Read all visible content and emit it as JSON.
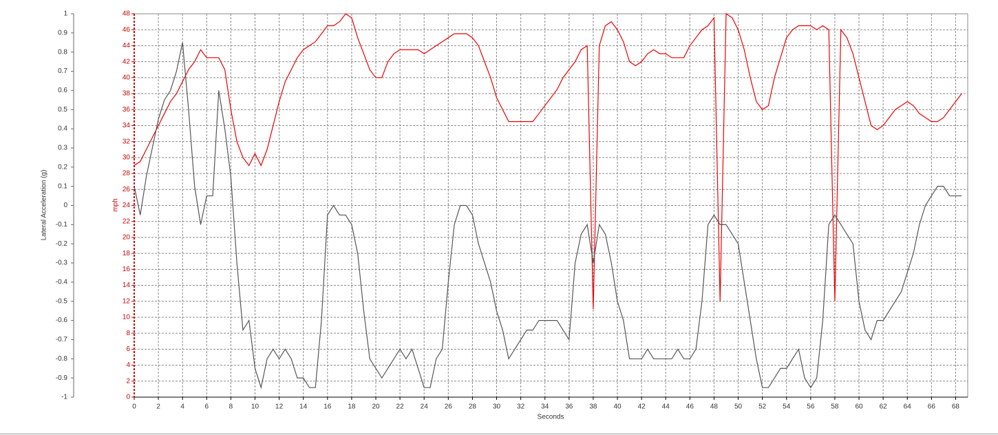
{
  "chart_data": {
    "type": "line",
    "xlabel": "Seconds",
    "ylabel": "mph",
    "y2label": "Lateral Acceleration (g)",
    "grid": true,
    "xlim": [
      0,
      69
    ],
    "xticks": [
      0,
      2,
      4,
      6,
      8,
      10,
      12,
      14,
      16,
      18,
      20,
      22,
      24,
      26,
      28,
      30,
      32,
      34,
      36,
      38,
      40,
      42,
      44,
      46,
      48,
      50,
      52,
      54,
      56,
      58,
      60,
      62,
      64,
      66,
      68
    ],
    "ylim": [
      0,
      48
    ],
    "yticks": [
      0,
      2,
      4,
      6,
      8,
      10,
      12,
      14,
      16,
      18,
      20,
      22,
      24,
      26,
      28,
      30,
      32,
      34,
      36,
      38,
      40,
      42,
      44,
      46,
      48
    ],
    "y2lim": [
      -1,
      1
    ],
    "y2ticks": [
      -1,
      -0.9,
      -0.8,
      -0.7,
      -0.6,
      -0.5,
      -0.4,
      -0.3,
      -0.2,
      -0.1,
      0,
      0.1,
      0.2,
      0.3,
      0.4,
      0.5,
      0.6,
      0.7,
      0.8,
      0.9,
      1
    ],
    "x": [
      0,
      0.5,
      1,
      1.5,
      2,
      2.5,
      3,
      3.5,
      4,
      4.5,
      5,
      5.5,
      6,
      6.5,
      7,
      7.5,
      8,
      8.5,
      9,
      9.5,
      10,
      10.5,
      11,
      11.5,
      12,
      12.5,
      13,
      13.5,
      14,
      14.5,
      15,
      15.5,
      16,
      16.5,
      17,
      17.5,
      18,
      18.5,
      19,
      19.5,
      20,
      20.5,
      21,
      21.5,
      22,
      22.5,
      23,
      23.5,
      24,
      24.5,
      25,
      25.5,
      26,
      26.5,
      27,
      27.5,
      28,
      28.5,
      29,
      29.5,
      30,
      30.5,
      31,
      31.5,
      32,
      32.5,
      33,
      33.5,
      34,
      34.5,
      35,
      35.5,
      36,
      36.5,
      37,
      37.5,
      38,
      38.5,
      39,
      39.5,
      40,
      40.5,
      41,
      41.5,
      42,
      42.5,
      43,
      43.5,
      44,
      44.5,
      45,
      45.5,
      46,
      46.5,
      47,
      47.5,
      48,
      48.5,
      49,
      49.5,
      50,
      50.5,
      51,
      51.5,
      52,
      52.5,
      53,
      53.5,
      54,
      54.5,
      55,
      55.5,
      56,
      56.5,
      57,
      57.5,
      58,
      58.5,
      59,
      59.5,
      60,
      60.5,
      61,
      61.5,
      62,
      62.5,
      63,
      63.5,
      64,
      64.5,
      65,
      65.5,
      66,
      66.5,
      67,
      67.5,
      68,
      68.5
    ],
    "series": [
      {
        "color": "#ee0000",
        "values": [
          29,
          29.5,
          31,
          32.5,
          34,
          35.5,
          37,
          38,
          39.5,
          41,
          42,
          43.5,
          42.5,
          42.5,
          42.5,
          41,
          36,
          32,
          30,
          29,
          30.5,
          29,
          31,
          34,
          37,
          39.5,
          41,
          42.5,
          43.5,
          44,
          44.5,
          45.5,
          46.5,
          46.5,
          47,
          48,
          47.5,
          45,
          43,
          41,
          40,
          40,
          42,
          43,
          43.5,
          43.5,
          43.5,
          43.5,
          43,
          43.5,
          44,
          44.5,
          45,
          45.5,
          45.5,
          45.5,
          45,
          44,
          42,
          40,
          37.5,
          36,
          34.5,
          34.5,
          34.5,
          34.5,
          34.5,
          35.5,
          36.5,
          37.5,
          38.5,
          40,
          41,
          42,
          43.5,
          44,
          11,
          44,
          46.5,
          47,
          46,
          44.5,
          42,
          41.5,
          42,
          43,
          43.5,
          43,
          43,
          42.5,
          42.5,
          42.5,
          44,
          45,
          46,
          46.5,
          47.5,
          12,
          48,
          47.5,
          46,
          43.5,
          40,
          37,
          36,
          36.5,
          40,
          42.5,
          45,
          46,
          46.5,
          46.5,
          46.5,
          46,
          46.5,
          46,
          12,
          46,
          45,
          43,
          40,
          37,
          34,
          33.5,
          34,
          35,
          36,
          36.5,
          37,
          36.5,
          35.5,
          35,
          34.5,
          34.5,
          35,
          36,
          37,
          38
        ]
      },
      {
        "color": "#555555",
        "axis": "y2",
        "values": [
          0.1,
          -0.05,
          0.15,
          0.3,
          0.45,
          0.55,
          0.6,
          0.7,
          0.85,
          0.5,
          0.1,
          -0.1,
          0.05,
          0.05,
          0.6,
          0.4,
          0.15,
          -0.3,
          -0.65,
          -0.6,
          -0.85,
          -0.95,
          -0.8,
          -0.75,
          -0.8,
          -0.75,
          -0.8,
          -0.9,
          -0.9,
          -0.95,
          -0.95,
          -0.6,
          -0.05,
          0,
          -0.05,
          -0.05,
          -0.1,
          -0.25,
          -0.55,
          -0.8,
          -0.85,
          -0.9,
          -0.85,
          -0.8,
          -0.75,
          -0.8,
          -0.75,
          -0.85,
          -0.95,
          -0.95,
          -0.8,
          -0.75,
          -0.4,
          -0.1,
          0,
          0,
          -0.05,
          -0.2,
          -0.3,
          -0.4,
          -0.55,
          -0.65,
          -0.8,
          -0.75,
          -0.7,
          -0.65,
          -0.65,
          -0.6,
          -0.6,
          -0.6,
          -0.6,
          -0.65,
          -0.7,
          -0.3,
          -0.15,
          -0.1,
          -0.3,
          -0.1,
          -0.15,
          -0.3,
          -0.5,
          -0.6,
          -0.8,
          -0.8,
          -0.8,
          -0.75,
          -0.8,
          -0.8,
          -0.8,
          -0.8,
          -0.75,
          -0.8,
          -0.8,
          -0.75,
          -0.5,
          -0.1,
          -0.05,
          -0.1,
          -0.1,
          -0.15,
          -0.2,
          -0.4,
          -0.6,
          -0.8,
          -0.95,
          -0.95,
          -0.9,
          -0.85,
          -0.85,
          -0.8,
          -0.75,
          -0.9,
          -0.95,
          -0.9,
          -0.6,
          -0.1,
          -0.05,
          -0.1,
          -0.15,
          -0.2,
          -0.5,
          -0.65,
          -0.7,
          -0.6,
          -0.6,
          -0.55,
          -0.5,
          -0.45,
          -0.35,
          -0.25,
          -0.1,
          0,
          0.05,
          0.1,
          0.1,
          0.05,
          0.05,
          0.05
        ]
      }
    ]
  }
}
